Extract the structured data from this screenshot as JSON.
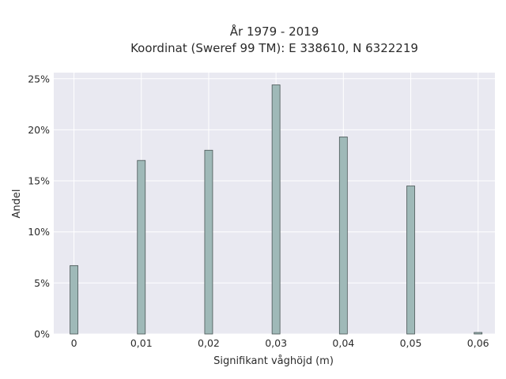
{
  "chart_data": {
    "type": "bar",
    "title": "År 1979 - 2019",
    "subtitle": "Koordinat (Sweref 99 TM): E 338610, N 6322219",
    "xlabel": "Signifikant våghöjd (m)",
    "ylabel": "Andel",
    "x_ticks": [
      "0",
      "0,01",
      "0,02",
      "0,03",
      "0,04",
      "0,05",
      "0,06"
    ],
    "y_ticks": [
      "0%",
      "5%",
      "10%",
      "15%",
      "20%",
      "25%"
    ],
    "xlim": [
      -0.003,
      0.0625
    ],
    "ylim": [
      0,
      25.6
    ],
    "grid": true,
    "colors": {
      "background": "#e9e9f1",
      "bar_fill": "#9fb9b8",
      "bar_stroke": "#4a5656",
      "grid": "#ffffff"
    },
    "x": [
      0.0,
      0.01,
      0.02,
      0.03,
      0.04,
      0.05,
      0.06
    ],
    "values": [
      6.7,
      17.0,
      18.0,
      24.4,
      19.3,
      14.5,
      0.15
    ],
    "unit": "%"
  }
}
